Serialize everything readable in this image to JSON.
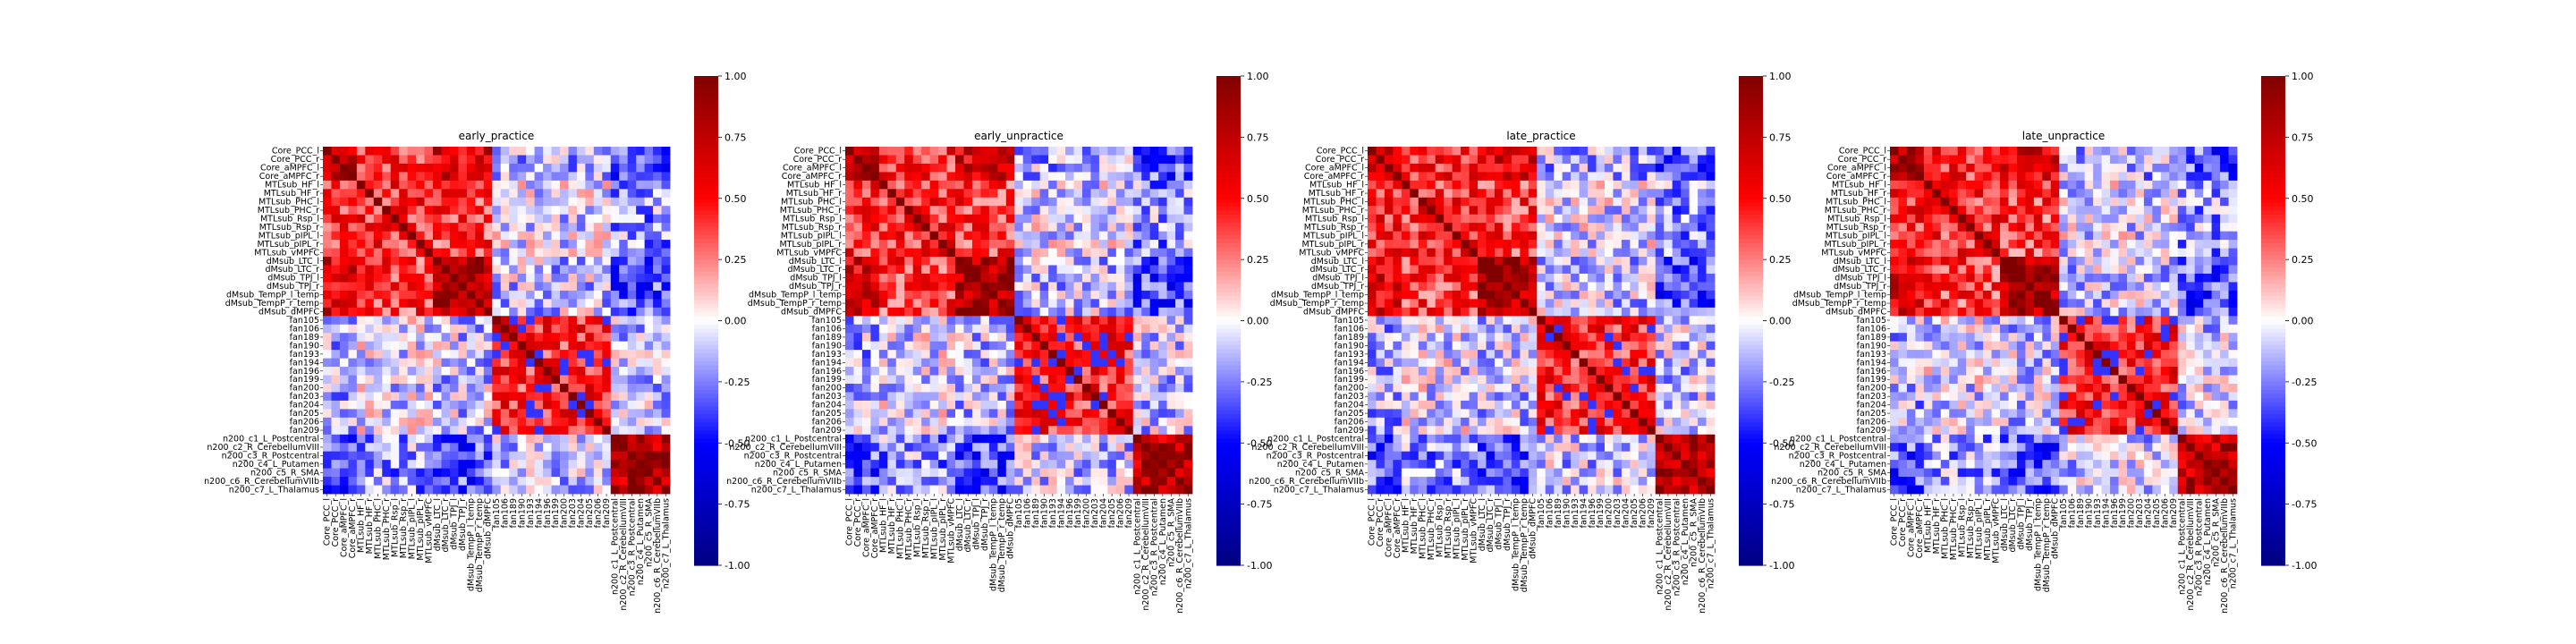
{
  "figure": {
    "background": "#ffffff"
  },
  "chart_data": [
    {
      "type": "heatmap",
      "title": "early_practice",
      "ylabels": [
        "Core_PCC_l",
        "Core_PCC_r",
        "Core_aMPFC_l",
        "Core_aMPFC_r",
        "MTLsub_HF_l",
        "MTLsub_HF_r",
        "MTLsub_PHC_l",
        "MTLsub_PHC_r",
        "MTLsub_Rsp_l",
        "MTLsub_Rsp_r",
        "MTLsub_pIPL_l",
        "MTLsub_pIPL_r",
        "MTLsub_vMPFC",
        "dMsub_LTC_l",
        "dMsub_LTC_r",
        "dMsub_TPJ_l",
        "dMsub_TPJ_r",
        "dMsub_TempP_l_temp",
        "dMsub_TempP_r_temp",
        "dMsub_dMPFC",
        "fan105",
        "fan106",
        "fan189",
        "fan190",
        "fan193",
        "fan194",
        "fan196",
        "fan199",
        "fan200",
        "fan203",
        "fan204",
        "fan205",
        "fan206",
        "fan209",
        "n200_c1_L_Postcentral",
        "n200_c2_R_CerebellumVIII",
        "n200_c3_R_Postcentral",
        "n200_c4_L_Putamen",
        "n200_c5_R_SMA",
        "n200_c6_R_CerebellumVIIb",
        "n200_c7_L_Thalamus"
      ],
      "colorbar": {
        "vmin": -1.0,
        "vmax": 1.0,
        "ticks": [
          "-1.00",
          "-0.75",
          "-0.50",
          "-0.25",
          "0.00",
          "0.25",
          "0.50",
          "0.75",
          "1.00"
        ]
      },
      "seed": 11
    },
    {
      "type": "heatmap",
      "title": "early_unpractice",
      "ylabels": [
        "Core_PCC_l",
        "Core_PCC_r",
        "Core_aMPFC_l",
        "Core_aMPFC_r",
        "MTLsub_HF_l",
        "MTLsub_HF_r",
        "MTLsub_PHC_l",
        "MTLsub_PHC_r",
        "MTLsub_Rsp_l",
        "MTLsub_Rsp_r",
        "MTLsub_pIPL_l",
        "MTLsub_pIPL_r",
        "MTLsub_vMPFC",
        "dMsub_LTC_l",
        "dMsub_LTC_r",
        "dMsub_TPJ_l",
        "dMsub_TPJ_r",
        "dMsub_TempP_l_temp",
        "dMsub_TempP_r_temp",
        "dMsub_dMPFC",
        "fan105",
        "fan106",
        "fan189",
        "fan190",
        "fan193",
        "fan194",
        "fan196",
        "fan199",
        "fan200",
        "fan203",
        "fan204",
        "fan205",
        "fan206",
        "fan209",
        "n200_c1_L_Postcentral",
        "n200_c2_R_CerebellumVIII",
        "n200_c3_R_Postcentral",
        "n200_c4_L_Putamen",
        "n200_c5_R_SMA",
        "n200_c6_R_CerebellumVIIb",
        "n200_c7_L_Thalamus"
      ],
      "colorbar": {
        "vmin": -1.0,
        "vmax": 1.0,
        "ticks": [
          "-1.00",
          "-0.75",
          "-0.50",
          "-0.25",
          "0.00",
          "0.25",
          "0.50",
          "0.75",
          "1.00"
        ]
      },
      "seed": 23
    },
    {
      "type": "heatmap",
      "title": "late_practice",
      "ylabels": [
        "Core_PCC_l",
        "Core_PCC_r",
        "Core_aMPFC_l",
        "Core_aMPFC_r",
        "MTLsub_HF_l",
        "MTLsub_HF_r",
        "MTLsub_PHC_l",
        "MTLsub_PHC_r",
        "MTLsub_Rsp_l",
        "MTLsub_Rsp_r",
        "MTLsub_pIPL_l",
        "MTLsub_pIPL_r",
        "MTLsub_vMPFC",
        "dMsub_LTC_l",
        "dMsub_LTC_r",
        "dMsub_TPJ_l",
        "dMsub_TPJ_r",
        "dMsub_TempP_l_temp",
        "dMsub_TempP_r_temp",
        "dMsub_dMPFC",
        "fan105",
        "fan106",
        "fan189",
        "fan190",
        "fan193",
        "fan194",
        "fan196",
        "fan199",
        "fan200",
        "fan203",
        "fan204",
        "fan205",
        "fan206",
        "fan209",
        "n200_c1_L_Postcentral",
        "n200_c2_R_CerebellumVIII",
        "n200_c3_R_Postcentral",
        "n200_c4_L_Putamen",
        "n200_c5_R_SMA",
        "n200_c6_R_CerebellumVIIb",
        "n200_c7_L_Thalamus"
      ],
      "colorbar": {
        "vmin": -1.0,
        "vmax": 1.0,
        "ticks": [
          "-1.00",
          "-0.75",
          "-0.50",
          "-0.25",
          "0.00",
          "0.25",
          "0.50",
          "0.75",
          "1.00"
        ]
      },
      "seed": 37
    },
    {
      "type": "heatmap",
      "title": "late_unpractice",
      "ylabels": [
        "Core_PCC_l",
        "Core_PCC_r",
        "Core_aMPFC_l",
        "Core_aMPFC_r",
        "MTLsub_HF_l",
        "MTLsub_HF_r",
        "MTLsub_PHC_l",
        "MTLsub_PHC_r",
        "MTLsub_Rsp_l",
        "MTLsub_Rsp_r",
        "MTLsub_pIPL_l",
        "MTLsub_pIPL_r",
        "MTLsub_vMPFC",
        "dMsub_LTC_l",
        "dMsub_LTC_r",
        "dMsub_TPJ_l",
        "dMsub_TPJ_r",
        "dMsub_TempP_l_temp",
        "dMsub_TempP_r_temp",
        "dMsub_dMPFC",
        "fan105",
        "fan106",
        "fan189",
        "fan190",
        "fan193",
        "fan194",
        "fan196",
        "fan199",
        "fan200",
        "fan203",
        "fan204",
        "fan205",
        "fan206",
        "fan209",
        "n200_c1_L_Postcentral",
        "n200_c2_R_CerebellumVIII",
        "n200_c3_R_Postcentral",
        "n200_c4_L_Putamen",
        "n200_c5_R_SMA",
        "n200_c6_R_CerebellumVIIb",
        "n200_c7_L_Thalamus"
      ],
      "colorbar": {
        "vmin": -1.0,
        "vmax": 1.0,
        "ticks": [
          "-1.00",
          "-0.75",
          "-0.50",
          "-0.25",
          "0.00",
          "0.25",
          "0.50",
          "0.75",
          "1.00"
        ]
      },
      "seed": 51
    }
  ],
  "colormap": {
    "low": "#000080",
    "mid": "#ffffff",
    "high": "#800000",
    "name": "seismic"
  }
}
